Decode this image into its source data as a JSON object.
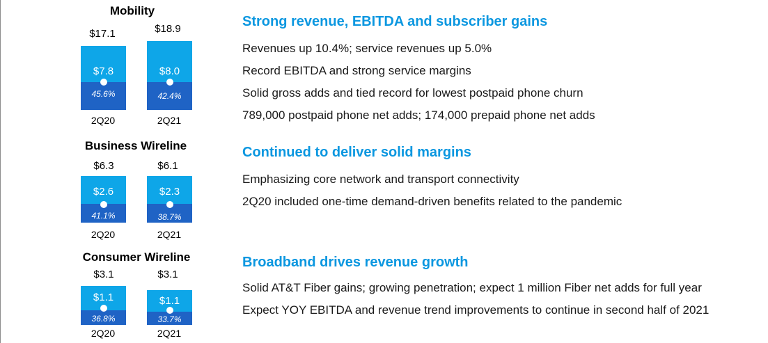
{
  "chart_data": [
    {
      "type": "bar",
      "title": "Mobility",
      "categories": [
        "2Q20",
        "2Q21"
      ],
      "totals": [
        "$17.1",
        "$18.9"
      ],
      "series": [
        {
          "name": "",
          "values": [
            17.1,
            18.9
          ]
        },
        {
          "name": "",
          "values": [
            7.8,
            8.0
          ]
        }
      ],
      "ebitda_labels": [
        "$7.8",
        "$8.0"
      ],
      "margins": [
        "45.6%",
        "42.4%"
      ]
    },
    {
      "type": "bar",
      "title": "Business Wireline",
      "categories": [
        "2Q20",
        "2Q21"
      ],
      "totals": [
        "$6.3",
        "$6.1"
      ],
      "series": [
        {
          "name": "",
          "values": [
            6.3,
            6.1
          ]
        },
        {
          "name": "",
          "values": [
            2.6,
            2.3
          ]
        }
      ],
      "ebitda_labels": [
        "$2.6",
        "$2.3"
      ],
      "margins": [
        "41.1%",
        "38.7%"
      ]
    },
    {
      "type": "bar",
      "title": "Consumer Wireline",
      "categories": [
        "2Q20",
        "2Q21"
      ],
      "totals": [
        "$3.1",
        "$3.1"
      ],
      "series": [
        {
          "name": "",
          "values": [
            3.1,
            3.1
          ]
        },
        {
          "name": "",
          "values": [
            1.1,
            1.1
          ]
        }
      ],
      "ebitda_labels": [
        "$1.1",
        "$1.1"
      ],
      "margins": [
        "36.8%",
        "33.7%"
      ]
    }
  ],
  "colors": {
    "revenue": "#0ea6e8",
    "margin_band": "#1f63c5",
    "heading": "#0b97e0"
  },
  "sections": [
    {
      "heading": "Strong revenue, EBITDA and subscriber gains",
      "bullets": [
        "Revenues up 10.4%; service revenues up 5.0%",
        "Record EBITDA and strong service margins",
        "Solid gross adds and tied record for lowest postpaid phone churn",
        "789,000 postpaid phone net adds;  174,000 prepaid phone net adds"
      ]
    },
    {
      "heading": "Continued to deliver solid margins",
      "bullets": [
        "Emphasizing core network and transport connectivity",
        "2Q20 included one-time demand-driven benefits related to the pandemic"
      ]
    },
    {
      "heading": "Broadband drives revenue growth",
      "bullets": [
        "Solid AT&T Fiber gains; growing penetration; expect 1 million Fiber net adds for full year",
        "Expect YOY EBITDA and revenue trend improvements to continue in second half of 2021"
      ]
    }
  ]
}
